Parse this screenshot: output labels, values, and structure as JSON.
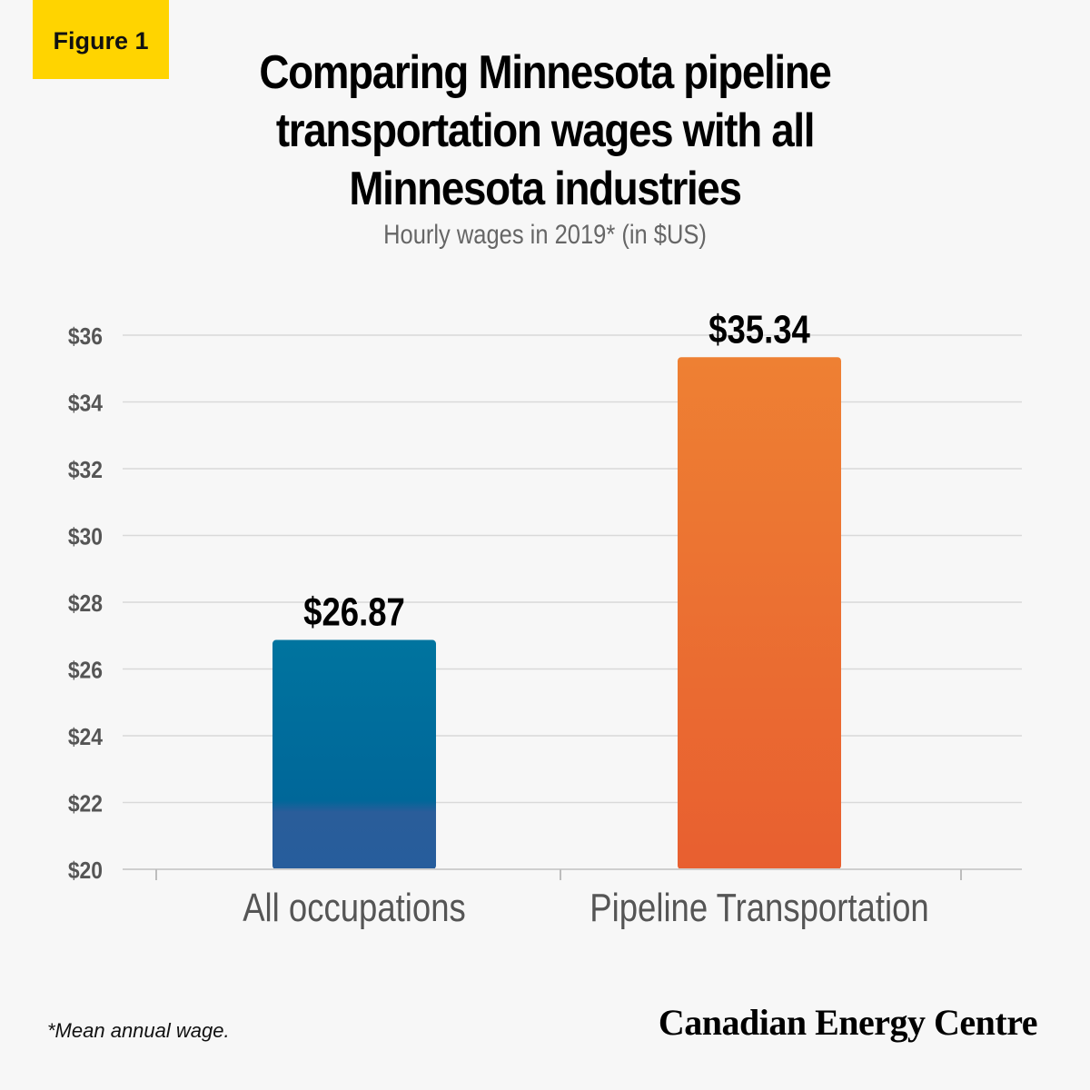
{
  "figure_label": "Figure 1",
  "title": "Comparing Minnesota pipeline transportation wages with all Minnesota industries",
  "subtitle": "Hourly wages in 2019* (in $US)",
  "footnote": "*Mean annual wage.",
  "brand": "Canadian Energy Centre",
  "colors": {
    "background": "#f7f7f7",
    "figure_tag": "#ffd400",
    "bar_blue_top": "#00749f",
    "bar_blue_bottom": "#2a5d9a",
    "bar_orange_top": "#ed7f32",
    "bar_orange_bottom": "#e85f30",
    "grid": "#d9d9d9",
    "axis_text": "#555555"
  },
  "chart_data": {
    "type": "bar",
    "categories": [
      "All occupations",
      "Pipeline Transportation"
    ],
    "values": [
      26.87,
      35.34
    ],
    "value_labels": [
      "$26.87",
      "$35.34"
    ],
    "ylim": [
      20,
      36
    ],
    "yticks": [
      20,
      22,
      24,
      26,
      28,
      30,
      32,
      34,
      36
    ],
    "ytick_labels": [
      "$20",
      "$22",
      "$24",
      "$26",
      "$28",
      "$30",
      "$32",
      "$34",
      "$36"
    ],
    "grid": true,
    "xlabel": "",
    "ylabel": ""
  }
}
